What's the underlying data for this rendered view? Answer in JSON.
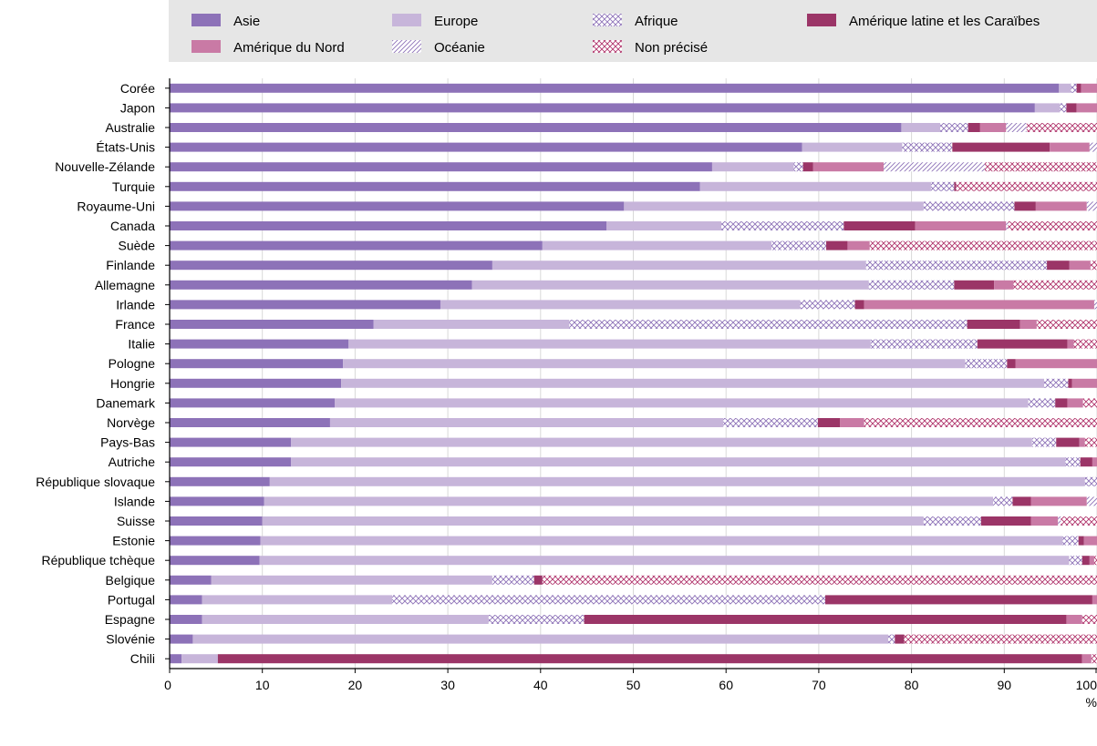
{
  "chart_data": {
    "type": "bar",
    "orientation": "horizontal",
    "stacked": true,
    "xlim": [
      0,
      100
    ],
    "x_ticks": [
      "0",
      "10",
      "20",
      "30",
      "40",
      "50",
      "60",
      "70",
      "80",
      "90",
      "100"
    ],
    "x_unit": "%",
    "grid": true,
    "legend_position": "top",
    "categories": [
      "Corée",
      "Japon",
      "Australie",
      "États-Unis",
      "Nouvelle-Zélande",
      "Turquie",
      "Royaume-Uni",
      "Canada",
      "Suède",
      "Finlande",
      "Allemagne",
      "Irlande",
      "France",
      "Italie",
      "Pologne",
      "Hongrie",
      "Danemark",
      "Norvège",
      "Pays-Bas",
      "Autriche",
      "République slovaque",
      "Islande",
      "Suisse",
      "Estonie",
      "République tchèque",
      "Belgique",
      "Portugal",
      "Espagne",
      "Slovénie",
      "Chili"
    ],
    "series": [
      {
        "name": "Asie",
        "color": "#8d72b8",
        "pattern": "solid",
        "values": [
          95.9,
          93.3,
          78.9,
          68.2,
          58.5,
          57.2,
          49.0,
          47.1,
          40.2,
          34.8,
          32.6,
          29.2,
          22.0,
          19.3,
          18.7,
          18.5,
          17.8,
          17.3,
          13.1,
          13.1,
          10.8,
          10.2,
          10.0,
          9.8,
          9.7,
          4.5,
          3.5,
          3.5,
          2.5,
          1.3
        ]
      },
      {
        "name": "Europe",
        "color": "#c7b5da",
        "pattern": "solid",
        "values": [
          1.3,
          2.7,
          4.2,
          10.8,
          8.8,
          24.9,
          32.3,
          12.4,
          24.7,
          40.3,
          42.8,
          38.8,
          21.1,
          56.3,
          67.1,
          75.8,
          74.8,
          42.4,
          79.9,
          83.5,
          87.9,
          78.6,
          71.3,
          86.5,
          87.3,
          30.3,
          20.5,
          30.9,
          75.0,
          3.9
        ]
      },
      {
        "name": "Afrique",
        "color": "#8d72b8",
        "pattern": "crosshatch",
        "values": [
          0.6,
          0.7,
          3.0,
          5.4,
          1.0,
          2.5,
          9.8,
          13.2,
          5.9,
          19.5,
          9.2,
          5.9,
          42.9,
          11.5,
          4.5,
          2.6,
          2.9,
          10.2,
          2.6,
          1.6,
          1.3,
          2.1,
          6.2,
          1.7,
          1.4,
          4.5,
          46.7,
          10.3,
          0.7,
          0
        ]
      },
      {
        "name": "Amérique latine et les Caraïbes",
        "color": "#9b3567",
        "pattern": "solid",
        "values": [
          0.5,
          1.1,
          1.3,
          10.5,
          1.1,
          0.2,
          2.3,
          7.7,
          2.3,
          2.4,
          4.3,
          1.0,
          5.7,
          9.7,
          0.9,
          0.4,
          1.3,
          2.4,
          2.5,
          1.3,
          0.6,
          2.0,
          5.4,
          0.6,
          0.8,
          0.9,
          28.8,
          52.0,
          1.0,
          93.2
        ]
      },
      {
        "name": "Amérique du Nord",
        "color": "#c97aa5",
        "pattern": "solid",
        "values": [
          1.7,
          2.2,
          2.8,
          4.3,
          7.6,
          0,
          5.5,
          9.8,
          2.4,
          2.3,
          2.1,
          24.8,
          1.8,
          0.7,
          8.8,
          2.7,
          1.7,
          2.6,
          0.6,
          0.5,
          0,
          6.0,
          2.9,
          1.4,
          0.5,
          0,
          0.5,
          1.7,
          0,
          1.0
        ]
      },
      {
        "name": "Océanie",
        "color": "#8d72b8",
        "pattern": "diagonal",
        "values": [
          0,
          0,
          2.2,
          0.8,
          10.9,
          0,
          1.1,
          0.2,
          0,
          0,
          0,
          0.3,
          0,
          0,
          0,
          0,
          0,
          0,
          0,
          0,
          0,
          1.1,
          0.3,
          0,
          0,
          0,
          0,
          0,
          0,
          0
        ]
      },
      {
        "name": "Non précisé",
        "color": "#b0336b",
        "pattern": "crosshatch",
        "values": [
          0,
          0,
          7.6,
          0,
          12.1,
          15.2,
          0,
          9.6,
          24.5,
          0.7,
          9.0,
          0,
          6.5,
          2.5,
          0,
          0,
          1.5,
          25.1,
          1.3,
          0,
          1.1,
          0,
          3.9,
          0,
          0.3,
          59.8,
          0,
          1.6,
          20.8,
          0.6
        ]
      }
    ]
  }
}
